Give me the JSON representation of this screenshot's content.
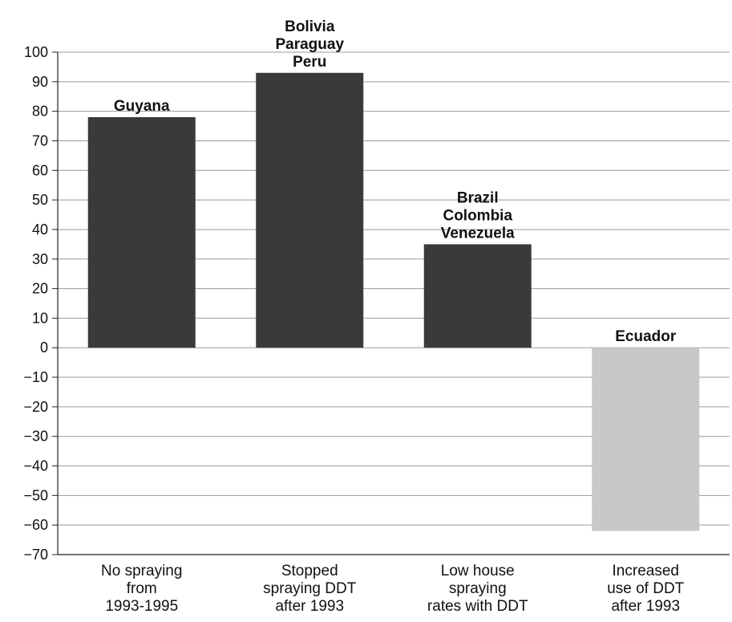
{
  "chart_data": {
    "type": "bar",
    "title": "",
    "xlabel": "",
    "ylabel": "",
    "ylim": [
      -70,
      100
    ],
    "ytick_step": 10,
    "grid": true,
    "categories": [
      [
        "No spraying",
        "from",
        "1993-1995"
      ],
      [
        "Stopped",
        "spraying DDT",
        "after 1993"
      ],
      [
        "Low house",
        "spraying",
        "rates with DDT"
      ],
      [
        "Increased",
        "use of DDT",
        "after 1993"
      ]
    ],
    "values": [
      78,
      93,
      35,
      -62
    ],
    "bar_labels": [
      [
        "Guyana"
      ],
      [
        "Bolivia",
        "Paraguay",
        "Peru"
      ],
      [
        "Brazil",
        "Colombia",
        "Venezuela"
      ],
      [
        "Ecuador"
      ]
    ],
    "colors": {
      "positive": "#3a3a3a",
      "negative": "#c8c8c8",
      "grid": "#9a9a9a",
      "axis": "#222222"
    }
  }
}
